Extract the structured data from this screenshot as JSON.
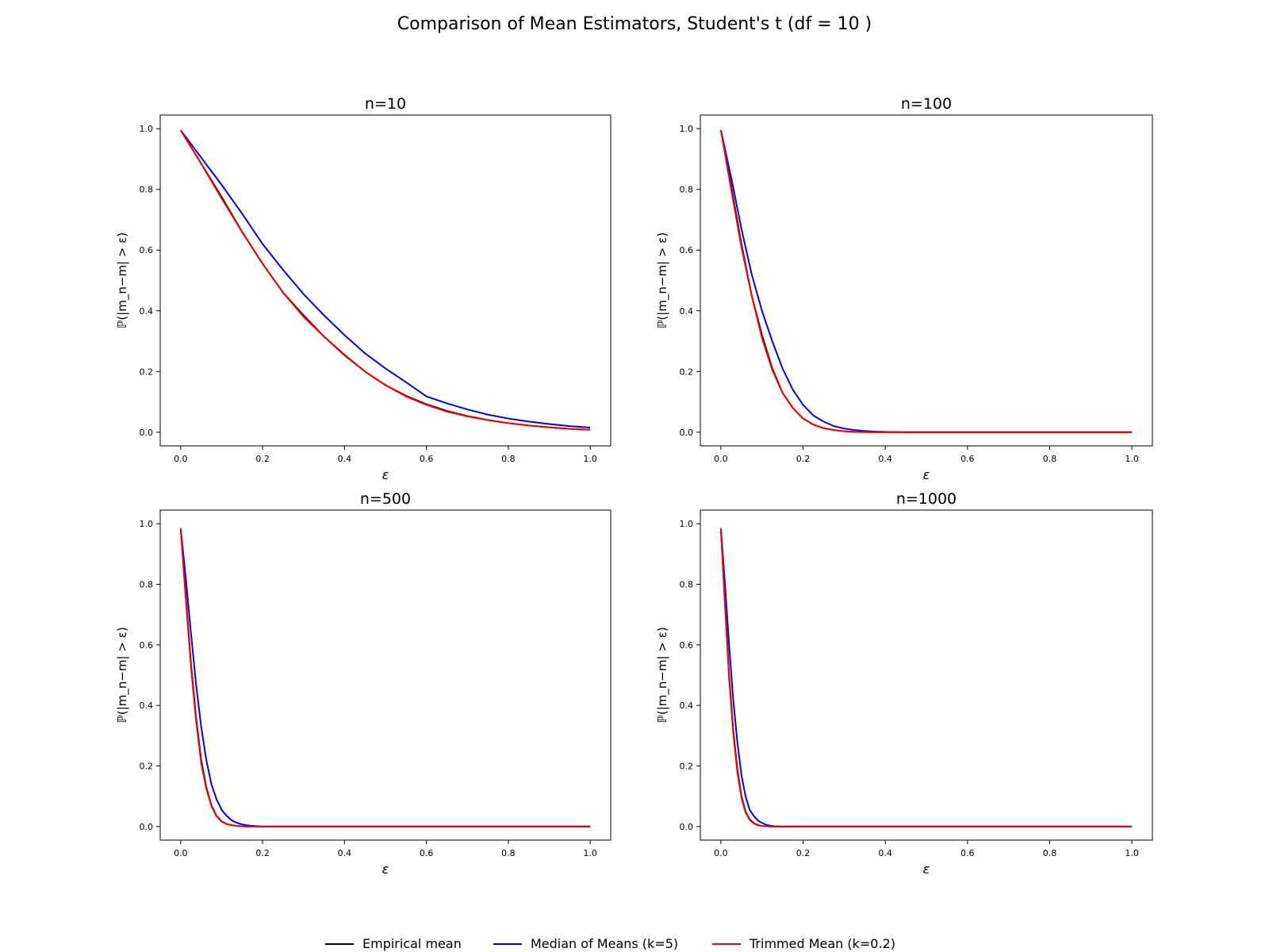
{
  "figure": {
    "suptitle": "Comparison of Mean Estimators, Student's t (df = 10 )"
  },
  "legend": [
    {
      "label": "Empirical mean",
      "color": "#000000"
    },
    {
      "label": "Median of Means (k=5)",
      "color": "#0000ff"
    },
    {
      "label": "Trimmed Mean (k=0.2)",
      "color": "#ff0000"
    }
  ],
  "chart_data": [
    {
      "type": "line",
      "title": "n=10",
      "xlabel": "ε",
      "ylabel": "ℙ(|m_n−m| > ε)",
      "xlim": [
        -0.05,
        1.05
      ],
      "ylim": [
        -0.045,
        1.045
      ],
      "xticks": [
        "0.0",
        "0.2",
        "0.4",
        "0.6",
        "0.8",
        "1.0"
      ],
      "yticks": [
        "0.0",
        "0.2",
        "0.4",
        "0.6",
        "0.8",
        "1.0"
      ],
      "x": [
        0.0,
        0.05,
        0.1,
        0.15,
        0.2,
        0.25,
        0.3,
        0.35,
        0.4,
        0.45,
        0.5,
        0.55,
        0.6,
        0.65,
        0.7,
        0.75,
        0.8,
        0.85,
        0.9,
        0.95,
        1.0
      ],
      "series": [
        {
          "name": "Empirical mean",
          "color": "#000000",
          "values": [
            0.995,
            0.885,
            0.775,
            0.66,
            0.555,
            0.46,
            0.385,
            0.315,
            0.255,
            0.2,
            0.155,
            0.12,
            0.092,
            0.07,
            0.053,
            0.04,
            0.03,
            0.022,
            0.016,
            0.011,
            0.008
          ]
        },
        {
          "name": "Median of Means (k=5)",
          "color": "#0000ff",
          "values": [
            0.995,
            0.905,
            0.815,
            0.72,
            0.62,
            0.535,
            0.455,
            0.385,
            0.32,
            0.26,
            0.21,
            0.165,
            0.118,
            0.095,
            0.075,
            0.058,
            0.045,
            0.035,
            0.027,
            0.02,
            0.015
          ]
        },
        {
          "name": "Trimmed Mean (k=0.2)",
          "color": "#ff0000",
          "values": [
            0.995,
            0.885,
            0.77,
            0.66,
            0.555,
            0.46,
            0.38,
            0.315,
            0.253,
            0.2,
            0.155,
            0.118,
            0.09,
            0.068,
            0.052,
            0.04,
            0.03,
            0.022,
            0.016,
            0.011,
            0.008
          ]
        }
      ]
    },
    {
      "type": "line",
      "title": "n=100",
      "xlabel": "ε",
      "ylabel": "ℙ(|m_n−m| > ε)",
      "xlim": [
        -0.05,
        1.05
      ],
      "ylim": [
        -0.045,
        1.045
      ],
      "xticks": [
        "0.0",
        "0.2",
        "0.4",
        "0.6",
        "0.8",
        "1.0"
      ],
      "yticks": [
        "0.0",
        "0.2",
        "0.4",
        "0.6",
        "0.8",
        "1.0"
      ],
      "x": [
        0.0,
        0.025,
        0.05,
        0.075,
        0.1,
        0.125,
        0.15,
        0.175,
        0.2,
        0.225,
        0.25,
        0.275,
        0.3,
        0.325,
        0.35,
        0.375,
        0.4,
        0.425,
        0.45,
        0.5,
        0.6,
        0.7,
        0.8,
        0.9,
        1.0
      ],
      "series": [
        {
          "name": "Empirical mean",
          "color": "#000000",
          "values": [
            0.995,
            0.81,
            0.62,
            0.45,
            0.32,
            0.21,
            0.13,
            0.08,
            0.045,
            0.025,
            0.013,
            0.007,
            0.003,
            0.001,
            0.0005,
            0,
            0,
            0,
            0,
            0,
            0,
            0,
            0,
            0,
            0
          ]
        },
        {
          "name": "Median of Means (k=5)",
          "color": "#0000ff",
          "values": [
            0.995,
            0.84,
            0.67,
            0.52,
            0.4,
            0.3,
            0.21,
            0.14,
            0.09,
            0.055,
            0.035,
            0.02,
            0.012,
            0.007,
            0.004,
            0.002,
            0.001,
            0.0005,
            0,
            0,
            0,
            0,
            0,
            0,
            0
          ]
        },
        {
          "name": "Trimmed Mean (k=0.2)",
          "color": "#ff0000",
          "values": [
            0.995,
            0.8,
            0.61,
            0.45,
            0.31,
            0.205,
            0.13,
            0.08,
            0.045,
            0.025,
            0.013,
            0.007,
            0.003,
            0.001,
            0.0005,
            0,
            0,
            0,
            0,
            0,
            0,
            0,
            0,
            0,
            0
          ]
        }
      ]
    },
    {
      "type": "line",
      "title": "n=500",
      "xlabel": "ε",
      "ylabel": "ℙ(|m_n−m| > ε)",
      "xlim": [
        -0.05,
        1.05
      ],
      "ylim": [
        -0.045,
        1.045
      ],
      "xticks": [
        "0.0",
        "0.2",
        "0.4",
        "0.6",
        "0.8",
        "1.0"
      ],
      "yticks": [
        "0.0",
        "0.2",
        "0.4",
        "0.6",
        "0.8",
        "1.0"
      ],
      "x": [
        0.0,
        0.0125,
        0.025,
        0.0375,
        0.05,
        0.0625,
        0.075,
        0.0875,
        0.1,
        0.1125,
        0.125,
        0.1375,
        0.15,
        0.1625,
        0.175,
        0.2,
        0.3,
        0.4,
        0.5,
        0.6,
        0.7,
        0.8,
        0.9,
        1.0
      ],
      "series": [
        {
          "name": "Empirical mean",
          "color": "#000000",
          "values": [
            0.985,
            0.76,
            0.54,
            0.36,
            0.22,
            0.13,
            0.07,
            0.035,
            0.017,
            0.008,
            0.004,
            0.002,
            0.001,
            0,
            0,
            0,
            0,
            0,
            0,
            0,
            0,
            0,
            0,
            0
          ]
        },
        {
          "name": "Median of Means (k=5)",
          "color": "#0000ff",
          "values": [
            0.985,
            0.82,
            0.64,
            0.47,
            0.33,
            0.22,
            0.14,
            0.09,
            0.055,
            0.035,
            0.02,
            0.012,
            0.007,
            0.004,
            0.002,
            0,
            0,
            0,
            0,
            0,
            0,
            0,
            0,
            0
          ]
        },
        {
          "name": "Trimmed Mean (k=0.2)",
          "color": "#ff0000",
          "values": [
            0.985,
            0.75,
            0.53,
            0.35,
            0.21,
            0.125,
            0.068,
            0.034,
            0.016,
            0.008,
            0.004,
            0.002,
            0.001,
            0,
            0,
            0,
            0,
            0,
            0,
            0,
            0,
            0,
            0,
            0
          ]
        }
      ]
    },
    {
      "type": "line",
      "title": "n=1000",
      "xlabel": "ε",
      "ylabel": "ℙ(|m_n−m| > ε)",
      "xlim": [
        -0.05,
        1.05
      ],
      "ylim": [
        -0.045,
        1.045
      ],
      "xticks": [
        "0.0",
        "0.2",
        "0.4",
        "0.6",
        "0.8",
        "1.0"
      ],
      "yticks": [
        "0.0",
        "0.2",
        "0.4",
        "0.6",
        "0.8",
        "1.0"
      ],
      "x": [
        0.0,
        0.01,
        0.02,
        0.03,
        0.04,
        0.05,
        0.06,
        0.07,
        0.08,
        0.09,
        0.1,
        0.11,
        0.12,
        0.13,
        0.15,
        0.2,
        0.3,
        0.4,
        0.5,
        0.6,
        0.7,
        0.8,
        0.9,
        1.0
      ],
      "series": [
        {
          "name": "Empirical mean",
          "color": "#000000",
          "values": [
            0.985,
            0.74,
            0.5,
            0.32,
            0.19,
            0.1,
            0.05,
            0.024,
            0.011,
            0.005,
            0.002,
            0.001,
            0,
            0,
            0,
            0,
            0,
            0,
            0,
            0,
            0,
            0,
            0,
            0
          ]
        },
        {
          "name": "Median of Means (k=5)",
          "color": "#0000ff",
          "values": [
            0.985,
            0.8,
            0.6,
            0.42,
            0.28,
            0.17,
            0.1,
            0.055,
            0.035,
            0.02,
            0.012,
            0.006,
            0.003,
            0.001,
            0,
            0,
            0,
            0,
            0,
            0,
            0,
            0,
            0,
            0
          ]
        },
        {
          "name": "Trimmed Mean (k=0.2)",
          "color": "#ff0000",
          "values": [
            0.985,
            0.73,
            0.49,
            0.31,
            0.18,
            0.095,
            0.047,
            0.022,
            0.01,
            0.004,
            0.002,
            0.001,
            0,
            0,
            0,
            0,
            0,
            0,
            0,
            0,
            0,
            0,
            0,
            0
          ]
        }
      ]
    }
  ]
}
